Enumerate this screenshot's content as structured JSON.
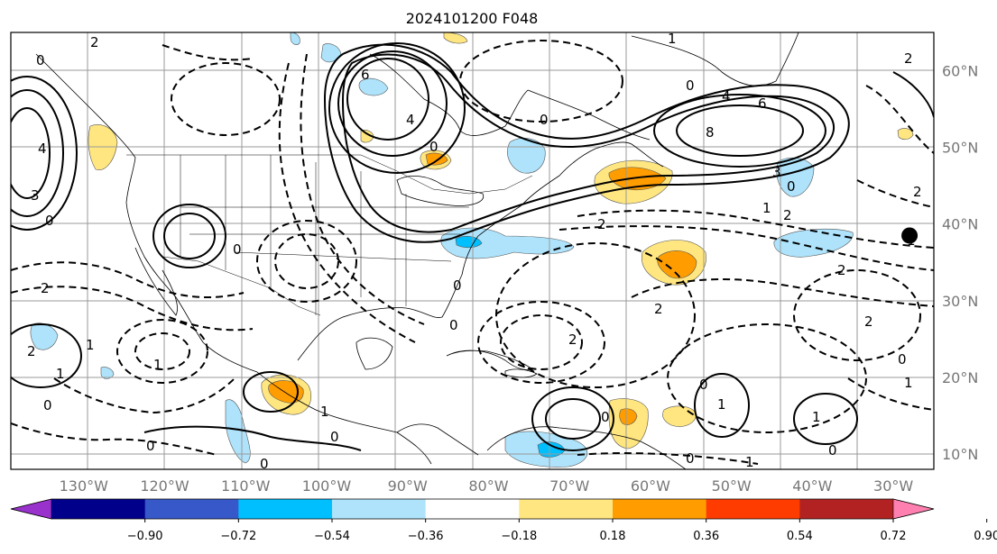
{
  "title": "2024101200 F048",
  "map": {
    "lon_range": [
      -139,
      -25
    ],
    "lat_range": [
      8,
      65
    ],
    "lon_ticks": [
      "130°W",
      "120°W",
      "110°W",
      "100°W",
      "90°W",
      "80°W",
      "70°W",
      "60°W",
      "50°W",
      "40°W",
      "30°W"
    ],
    "lat_ticks": [
      "60°N",
      "50°N",
      "40°N",
      "30°N",
      "20°N",
      "10°N"
    ],
    "contour_labels": {
      "zero": "0",
      "one": "1",
      "two": "2",
      "three": "3",
      "four": "4",
      "six": "6",
      "eight": "8"
    },
    "marker": {
      "lon": -28,
      "lat": 38.5,
      "color": "#000000"
    }
  },
  "colorbar": {
    "ticks": [
      "−0.90",
      "−0.72",
      "−0.54",
      "−0.36",
      "−0.18",
      "0.18",
      "0.36",
      "0.54",
      "0.72",
      "0.90"
    ],
    "colors": [
      "#9932cc",
      "#00008b",
      "#3658c9",
      "#00bfff",
      "#aee3fb",
      "#ffffff",
      "#ffe680",
      "#ff9d00",
      "#ff3c00",
      "#b22222",
      "#ff80b0"
    ]
  }
}
